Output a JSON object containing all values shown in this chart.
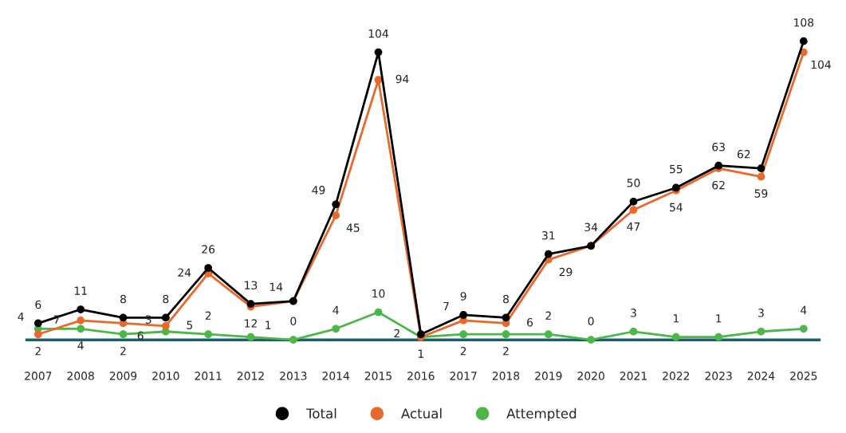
{
  "chart_data": {
    "type": "line",
    "categories": [
      "2007",
      "2008",
      "2009",
      "2010",
      "2011",
      "2012",
      "2013",
      "2014",
      "2015",
      "2016",
      "2017",
      "2018",
      "2019",
      "2020",
      "2021",
      "2022",
      "2023",
      "2024",
      "2025"
    ],
    "series": [
      {
        "name": "Total",
        "color": "#000000",
        "values": [
          6,
          11,
          8,
          8,
          26,
          13,
          14,
          49,
          104,
          2,
          9,
          8,
          31,
          34,
          50,
          55,
          63,
          62,
          108
        ],
        "value_labels": [
          "6",
          "11",
          "8",
          "8",
          "26",
          "13",
          "14",
          "49",
          "104",
          "2",
          "9",
          "8",
          "31",
          "34",
          "50",
          "55",
          "63",
          "62",
          "108"
        ]
      },
      {
        "name": "Actual",
        "color": "#e8692b",
        "values": [
          2,
          7,
          6,
          5,
          24,
          12,
          14,
          45,
          94,
          1,
          7,
          6,
          29,
          34,
          47,
          54,
          62,
          59,
          104
        ],
        "value_labels": [
          "2",
          "7",
          "6",
          "5",
          "24",
          "12",
          null,
          "45",
          "94",
          "1",
          "7",
          "6",
          "29",
          null,
          "47",
          "54",
          "62",
          "59",
          "104"
        ]
      },
      {
        "name": "Attempted",
        "color": "#4cb648",
        "values": [
          4,
          4,
          2,
          3,
          2,
          1,
          0,
          4,
          10,
          1,
          2,
          2,
          2,
          0,
          3,
          1,
          1,
          3,
          4
        ],
        "value_labels": [
          "4",
          "4",
          "2",
          "3",
          "2",
          "1",
          "0",
          "4",
          "10",
          null,
          "2",
          "2",
          "2",
          "0",
          "3",
          "1",
          "1",
          "3",
          "4"
        ]
      }
    ],
    "marker": "circle",
    "grid": false,
    "legend": "bottom",
    "tick_labels": "x"
  }
}
